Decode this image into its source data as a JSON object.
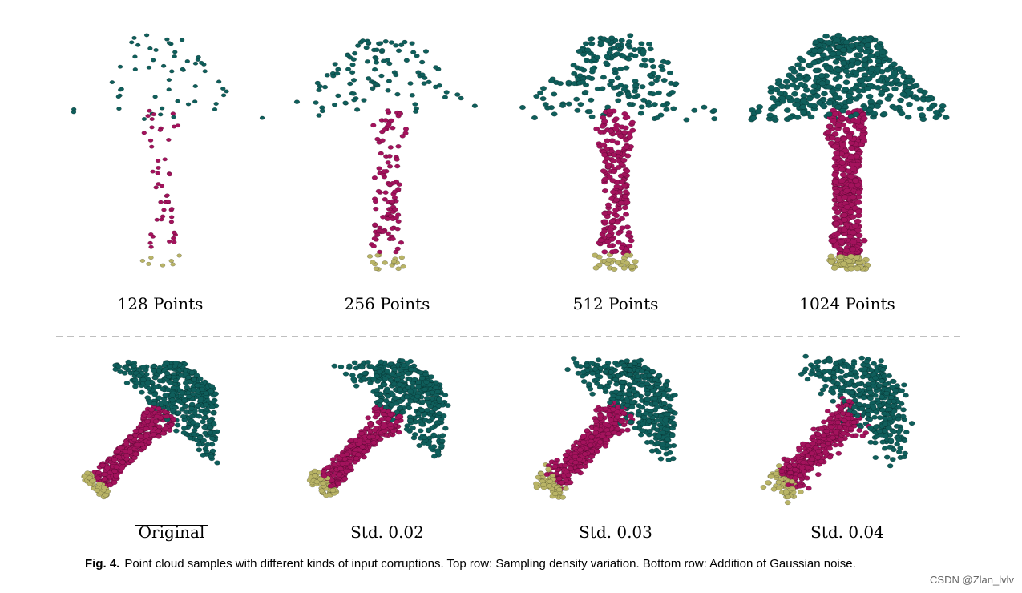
{
  "figure": {
    "top_row": [
      "128 Points",
      "256 Points",
      "512 Points",
      "1024 Points"
    ],
    "bottom_row": [
      "Original",
      "Std. 0.02",
      "Std. 0.03",
      "Std. 0.04"
    ],
    "caption": {
      "label": "Fig. 4.",
      "text": "Point cloud samples with different kinds of input corruptions. Top row: Sampling density variation. Bottom row: Addition of Gaussian noise."
    }
  },
  "watermark": "CSDN @Zlan_lvlv"
}
